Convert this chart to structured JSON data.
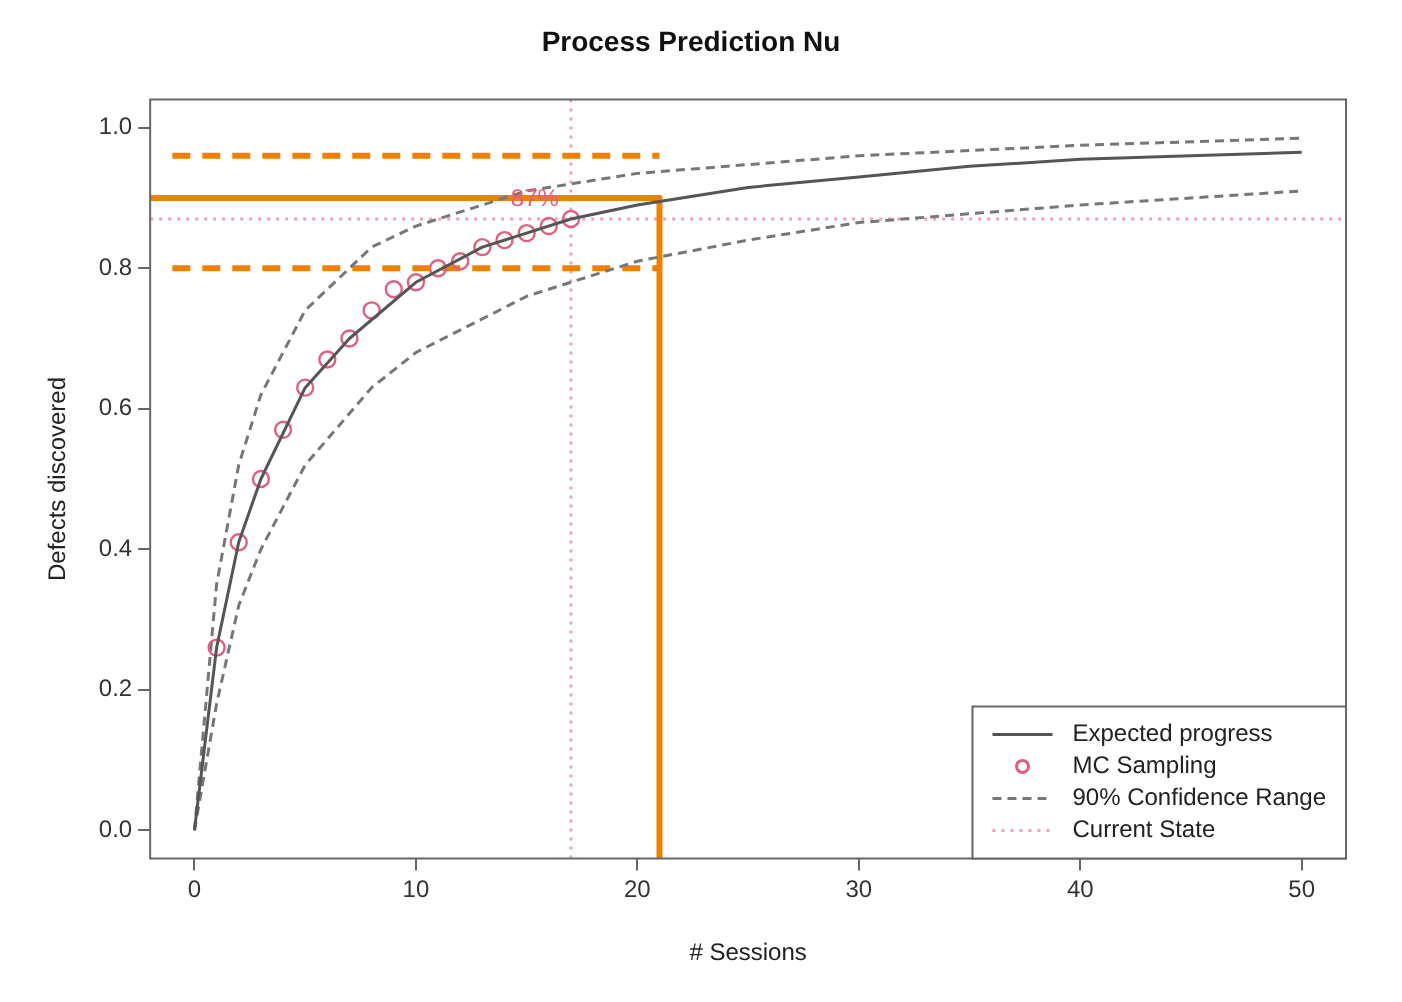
{
  "chart_data": {
    "type": "line",
    "title": "Process Prediction Nu",
    "xlabel": "# Sessions",
    "ylabel": "Defects discovered",
    "xlim": [
      -2,
      52
    ],
    "ylim": [
      -0.04,
      1.04
    ],
    "xticks": [
      0,
      10,
      20,
      30,
      40,
      50
    ],
    "yticks": [
      {
        "value": 0,
        "label": "0.0"
      },
      {
        "value": 0.2,
        "label": "0.2"
      },
      {
        "value": 0.4,
        "label": "0.4"
      },
      {
        "value": 0.6,
        "label": "0.6"
      },
      {
        "value": 0.8,
        "label": "0.8"
      },
      {
        "value": 1,
        "label": "1.0"
      }
    ],
    "grid": false,
    "legend": "bottom right",
    "series": [
      {
        "name": "Expected progress",
        "color": "#555555",
        "line_style": "solid",
        "marker": "none",
        "x": [
          0,
          1,
          2,
          3,
          5,
          7,
          10,
          13,
          17,
          20,
          25,
          30,
          35,
          40,
          45,
          50
        ],
        "values": [
          0,
          0.26,
          0.41,
          0.5,
          0.63,
          0.7,
          0.78,
          0.83,
          0.87,
          0.89,
          0.915,
          0.93,
          0.945,
          0.955,
          0.96,
          0.965
        ]
      },
      {
        "name": "MC Sampling",
        "type": "scatter",
        "color": "#e0607e",
        "marker": "circle",
        "x": [
          1,
          2,
          3,
          4,
          5,
          6,
          7,
          8,
          9,
          10,
          11,
          12,
          13,
          14,
          15,
          16,
          17
        ],
        "values": [
          0.26,
          0.41,
          0.5,
          0.57,
          0.63,
          0.67,
          0.7,
          0.74,
          0.77,
          0.78,
          0.8,
          0.81,
          0.83,
          0.84,
          0.85,
          0.86,
          0.87
        ]
      },
      {
        "name": "90% Confidence Range",
        "color": "#777777",
        "line_style": "dashed",
        "marker": "none",
        "x": [
          0,
          1,
          2,
          3,
          5,
          8,
          10,
          15,
          20,
          30,
          40,
          50
        ],
        "values": [
          0,
          0.35,
          0.52,
          0.62,
          0.74,
          0.83,
          0.86,
          0.91,
          0.935,
          0.96,
          0.975,
          0.985
        ]
      },
      {
        "type": "line",
        "color": "#777777",
        "line_style": "dashed",
        "marker": "none",
        "x": [
          0,
          1,
          2,
          3,
          5,
          8,
          10,
          15,
          17,
          20,
          25,
          30,
          40,
          50
        ],
        "values": [
          0,
          0.18,
          0.32,
          0.4,
          0.52,
          0.63,
          0.68,
          0.76,
          0.78,
          0.81,
          0.84,
          0.865,
          0.89,
          0.91
        ]
      },
      {
        "type": "line",
        "color": "#f08000",
        "line_style": "solid",
        "marker": "none",
        "x": [
          -2,
          21,
          21
        ],
        "values": [
          0.9,
          0.9,
          -0.04
        ]
      },
      {
        "type": "line",
        "color": "#f08000",
        "line_style": "dashed",
        "marker": "none",
        "x": [
          -1,
          21
        ],
        "values": [
          0.96,
          0.96
        ]
      },
      {
        "type": "line",
        "color": "#f08000",
        "line_style": "dashed",
        "marker": "none",
        "x": [
          -1,
          21
        ],
        "values": [
          0.8,
          0.8
        ]
      }
    ],
    "ref_lines": [
      {
        "axis": "x",
        "value": 17,
        "color": "#f4a0b8",
        "line_style": "dotted"
      },
      {
        "axis": "y",
        "value": 0.87,
        "label": "Current State",
        "color": "#f4a0b8",
        "line_style": "dotted"
      }
    ],
    "annotations": [
      {
        "text": "87%",
        "x": 17,
        "y": 0.87
      }
    ]
  }
}
